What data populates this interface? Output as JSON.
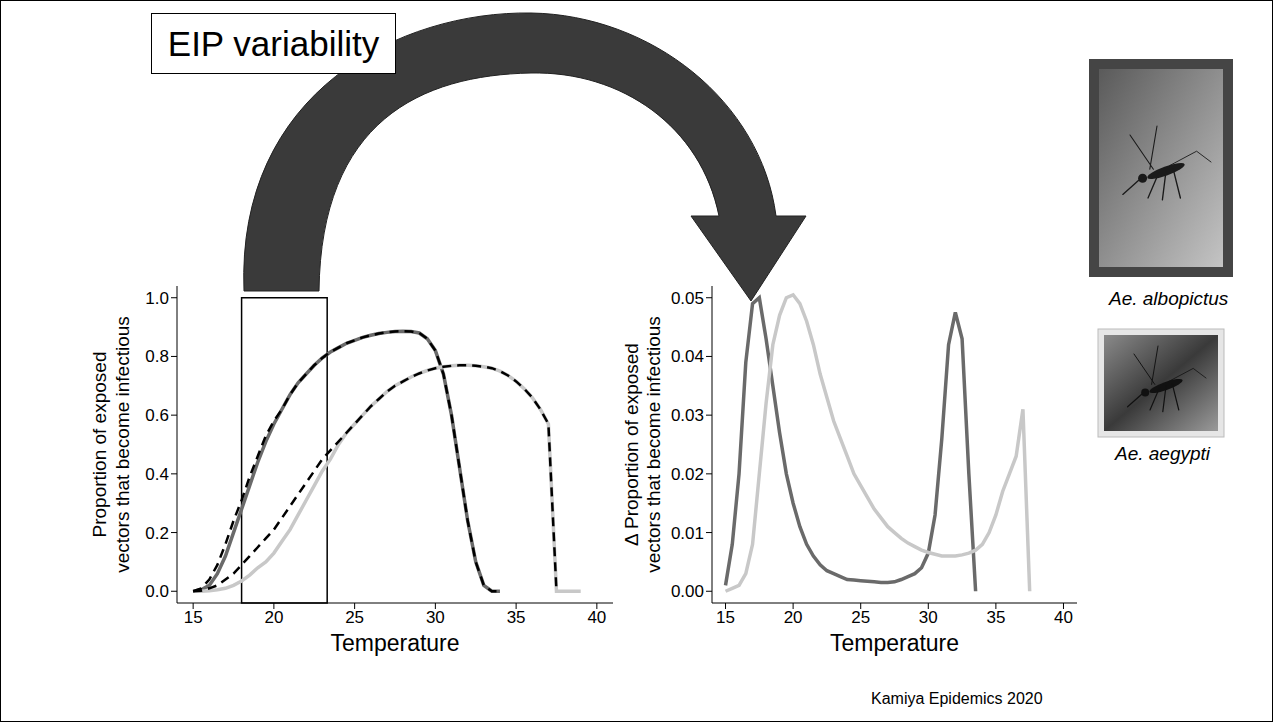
{
  "title": "EIP variability",
  "citation": "Kamiya Epidemics 2020",
  "images": [
    {
      "caption": "Ae. albopictus"
    },
    {
      "caption": "Ae. aegypti"
    }
  ],
  "chart_data": [
    {
      "type": "line",
      "x_label": "Temperature",
      "y_label": "Proportion of exposed vectors that become infectious",
      "x": [
        15,
        15.5,
        16,
        16.5,
        17,
        17.5,
        18,
        18.5,
        19,
        19.5,
        20,
        20.5,
        21,
        21.5,
        22,
        22.5,
        23,
        23.5,
        24,
        24.5,
        25,
        25.5,
        26,
        26.5,
        27,
        27.5,
        28,
        28.5,
        29,
        29.5,
        30,
        30.5,
        31,
        31.5,
        32,
        32.5,
        33,
        33.5,
        34,
        34.5,
        35,
        35.5,
        36,
        36.5,
        37,
        37.5,
        38,
        38.5,
        39
      ],
      "xlim": [
        14,
        41
      ],
      "xticks": [
        15,
        20,
        25,
        30,
        35,
        40
      ],
      "ylim": [
        -0.04,
        1.04
      ],
      "yticks": [
        {
          "value": 0,
          "label": "0.0"
        },
        0.2,
        0.4,
        0.6,
        0.8,
        {
          "value": 1,
          "label": "1.0"
        }
      ],
      "highlight": {
        "x": [
          18,
          23.3
        ],
        "y": [
          -0.04,
          1
        ]
      },
      "series": [
        {
          "color": "#6a6a6a",
          "line_style": "solid",
          "values": [
            0,
            0.005,
            0.02,
            0.06,
            0.12,
            0.2,
            0.28,
            0.36,
            0.44,
            0.51,
            0.57,
            0.62,
            0.67,
            0.71,
            0.74,
            0.77,
            0.795,
            0.815,
            0.83,
            0.845,
            0.855,
            0.865,
            0.872,
            0.878,
            0.882,
            0.885,
            0.886,
            0.885,
            0.88,
            0.86,
            0.82,
            0.74,
            0.6,
            0.42,
            0.24,
            0.1,
            0.02,
            0,
            0,
            null,
            null,
            null,
            null,
            null,
            null,
            null,
            null,
            null,
            null
          ]
        },
        {
          "color": "#c8c8c8",
          "line_style": "solid",
          "values": [
            0,
            0,
            0.002,
            0.005,
            0.01,
            0.02,
            0.035,
            0.055,
            0.08,
            0.1,
            0.13,
            0.17,
            0.21,
            0.26,
            0.31,
            0.36,
            0.41,
            0.45,
            0.5,
            0.54,
            0.57,
            0.6,
            0.63,
            0.655,
            0.68,
            0.7,
            0.715,
            0.73,
            0.742,
            0.752,
            0.76,
            0.765,
            0.768,
            0.77,
            0.77,
            0.768,
            0.765,
            0.76,
            0.75,
            0.735,
            0.715,
            0.69,
            0.66,
            0.62,
            0.57,
            0,
            0,
            0,
            0
          ]
        },
        {
          "color": "#000000",
          "line_style": "dashed",
          "values": [
            0,
            0.01,
            0.04,
            0.09,
            0.16,
            0.24,
            0.31,
            0.39,
            0.46,
            0.53,
            0.58,
            0.62,
            0.67,
            0.71,
            0.74,
            0.77,
            0.795,
            0.815,
            0.83,
            0.845,
            0.855,
            0.865,
            0.872,
            0.878,
            0.882,
            0.885,
            0.886,
            0.885,
            0.88,
            0.86,
            0.82,
            0.74,
            0.6,
            0.42,
            0.24,
            0.1,
            0.02,
            0,
            0,
            null,
            null,
            null,
            null,
            null,
            null,
            null,
            null,
            null,
            null
          ]
        },
        {
          "color": "#000000",
          "line_style": "dashed",
          "values": [
            0,
            0.002,
            0.01,
            0.02,
            0.04,
            0.06,
            0.09,
            0.12,
            0.15,
            0.18,
            0.21,
            0.25,
            0.29,
            0.33,
            0.37,
            0.41,
            0.45,
            0.48,
            0.51,
            0.54,
            0.57,
            0.6,
            0.63,
            0.655,
            0.68,
            0.7,
            0.715,
            0.73,
            0.742,
            0.752,
            0.76,
            0.765,
            0.768,
            0.77,
            0.77,
            0.768,
            0.765,
            0.76,
            0.75,
            0.735,
            0.715,
            0.69,
            0.66,
            0.62,
            0.57,
            0,
            null,
            null,
            null
          ]
        }
      ]
    },
    {
      "type": "line",
      "x_label": "Temperature",
      "y_label": "Δ Proportion of exposed vectors that become infectious",
      "x": [
        15,
        15.5,
        16,
        16.5,
        17,
        17.5,
        18,
        18.5,
        19,
        19.5,
        20,
        20.5,
        21,
        21.5,
        22,
        22.5,
        23,
        23.5,
        24,
        24.5,
        25,
        25.5,
        26,
        26.5,
        27,
        27.5,
        28,
        28.5,
        29,
        29.5,
        30,
        30.5,
        31,
        31.5,
        32,
        32.5,
        33,
        33.5,
        34,
        34.5,
        35,
        35.5,
        36,
        36.5,
        37,
        37.5
      ],
      "xlim": [
        14,
        41
      ],
      "xticks": [
        15,
        20,
        25,
        30,
        35,
        40
      ],
      "ylim": [
        -0.002,
        0.052
      ],
      "yticks": [
        {
          "value": 0,
          "label": "0.00"
        },
        0.01,
        0.02,
        0.03,
        0.04,
        0.05
      ],
      "series": [
        {
          "color": "#6a6a6a",
          "line_style": "solid",
          "values": [
            0.001,
            0.008,
            0.02,
            0.039,
            0.049,
            0.05,
            0.043,
            0.035,
            0.027,
            0.02,
            0.015,
            0.011,
            0.008,
            0.006,
            0.0045,
            0.0035,
            0.003,
            0.0025,
            0.002,
            0.0019,
            0.0018,
            0.0017,
            0.0016,
            0.0015,
            0.0015,
            0.0016,
            0.002,
            0.0025,
            0.003,
            0.004,
            0.0065,
            0.013,
            0.026,
            0.042,
            0.0475,
            0.043,
            0.02,
            0,
            null,
            null,
            null,
            null,
            null,
            null,
            null,
            null
          ]
        },
        {
          "color": "#c8c8c8",
          "line_style": "solid",
          "values": [
            0,
            0.0005,
            0.001,
            0.003,
            0.008,
            0.02,
            0.032,
            0.042,
            0.047,
            0.05,
            0.0505,
            0.049,
            0.046,
            0.042,
            0.037,
            0.033,
            0.029,
            0.026,
            0.023,
            0.02,
            0.018,
            0.016,
            0.014,
            0.0125,
            0.011,
            0.01,
            0.009,
            0.0082,
            0.0076,
            0.007,
            0.0066,
            0.0063,
            0.006,
            0.006,
            0.006,
            0.0062,
            0.0065,
            0.007,
            0.008,
            0.01,
            0.013,
            0.017,
            0.02,
            0.023,
            0.031,
            0
          ]
        }
      ]
    }
  ]
}
